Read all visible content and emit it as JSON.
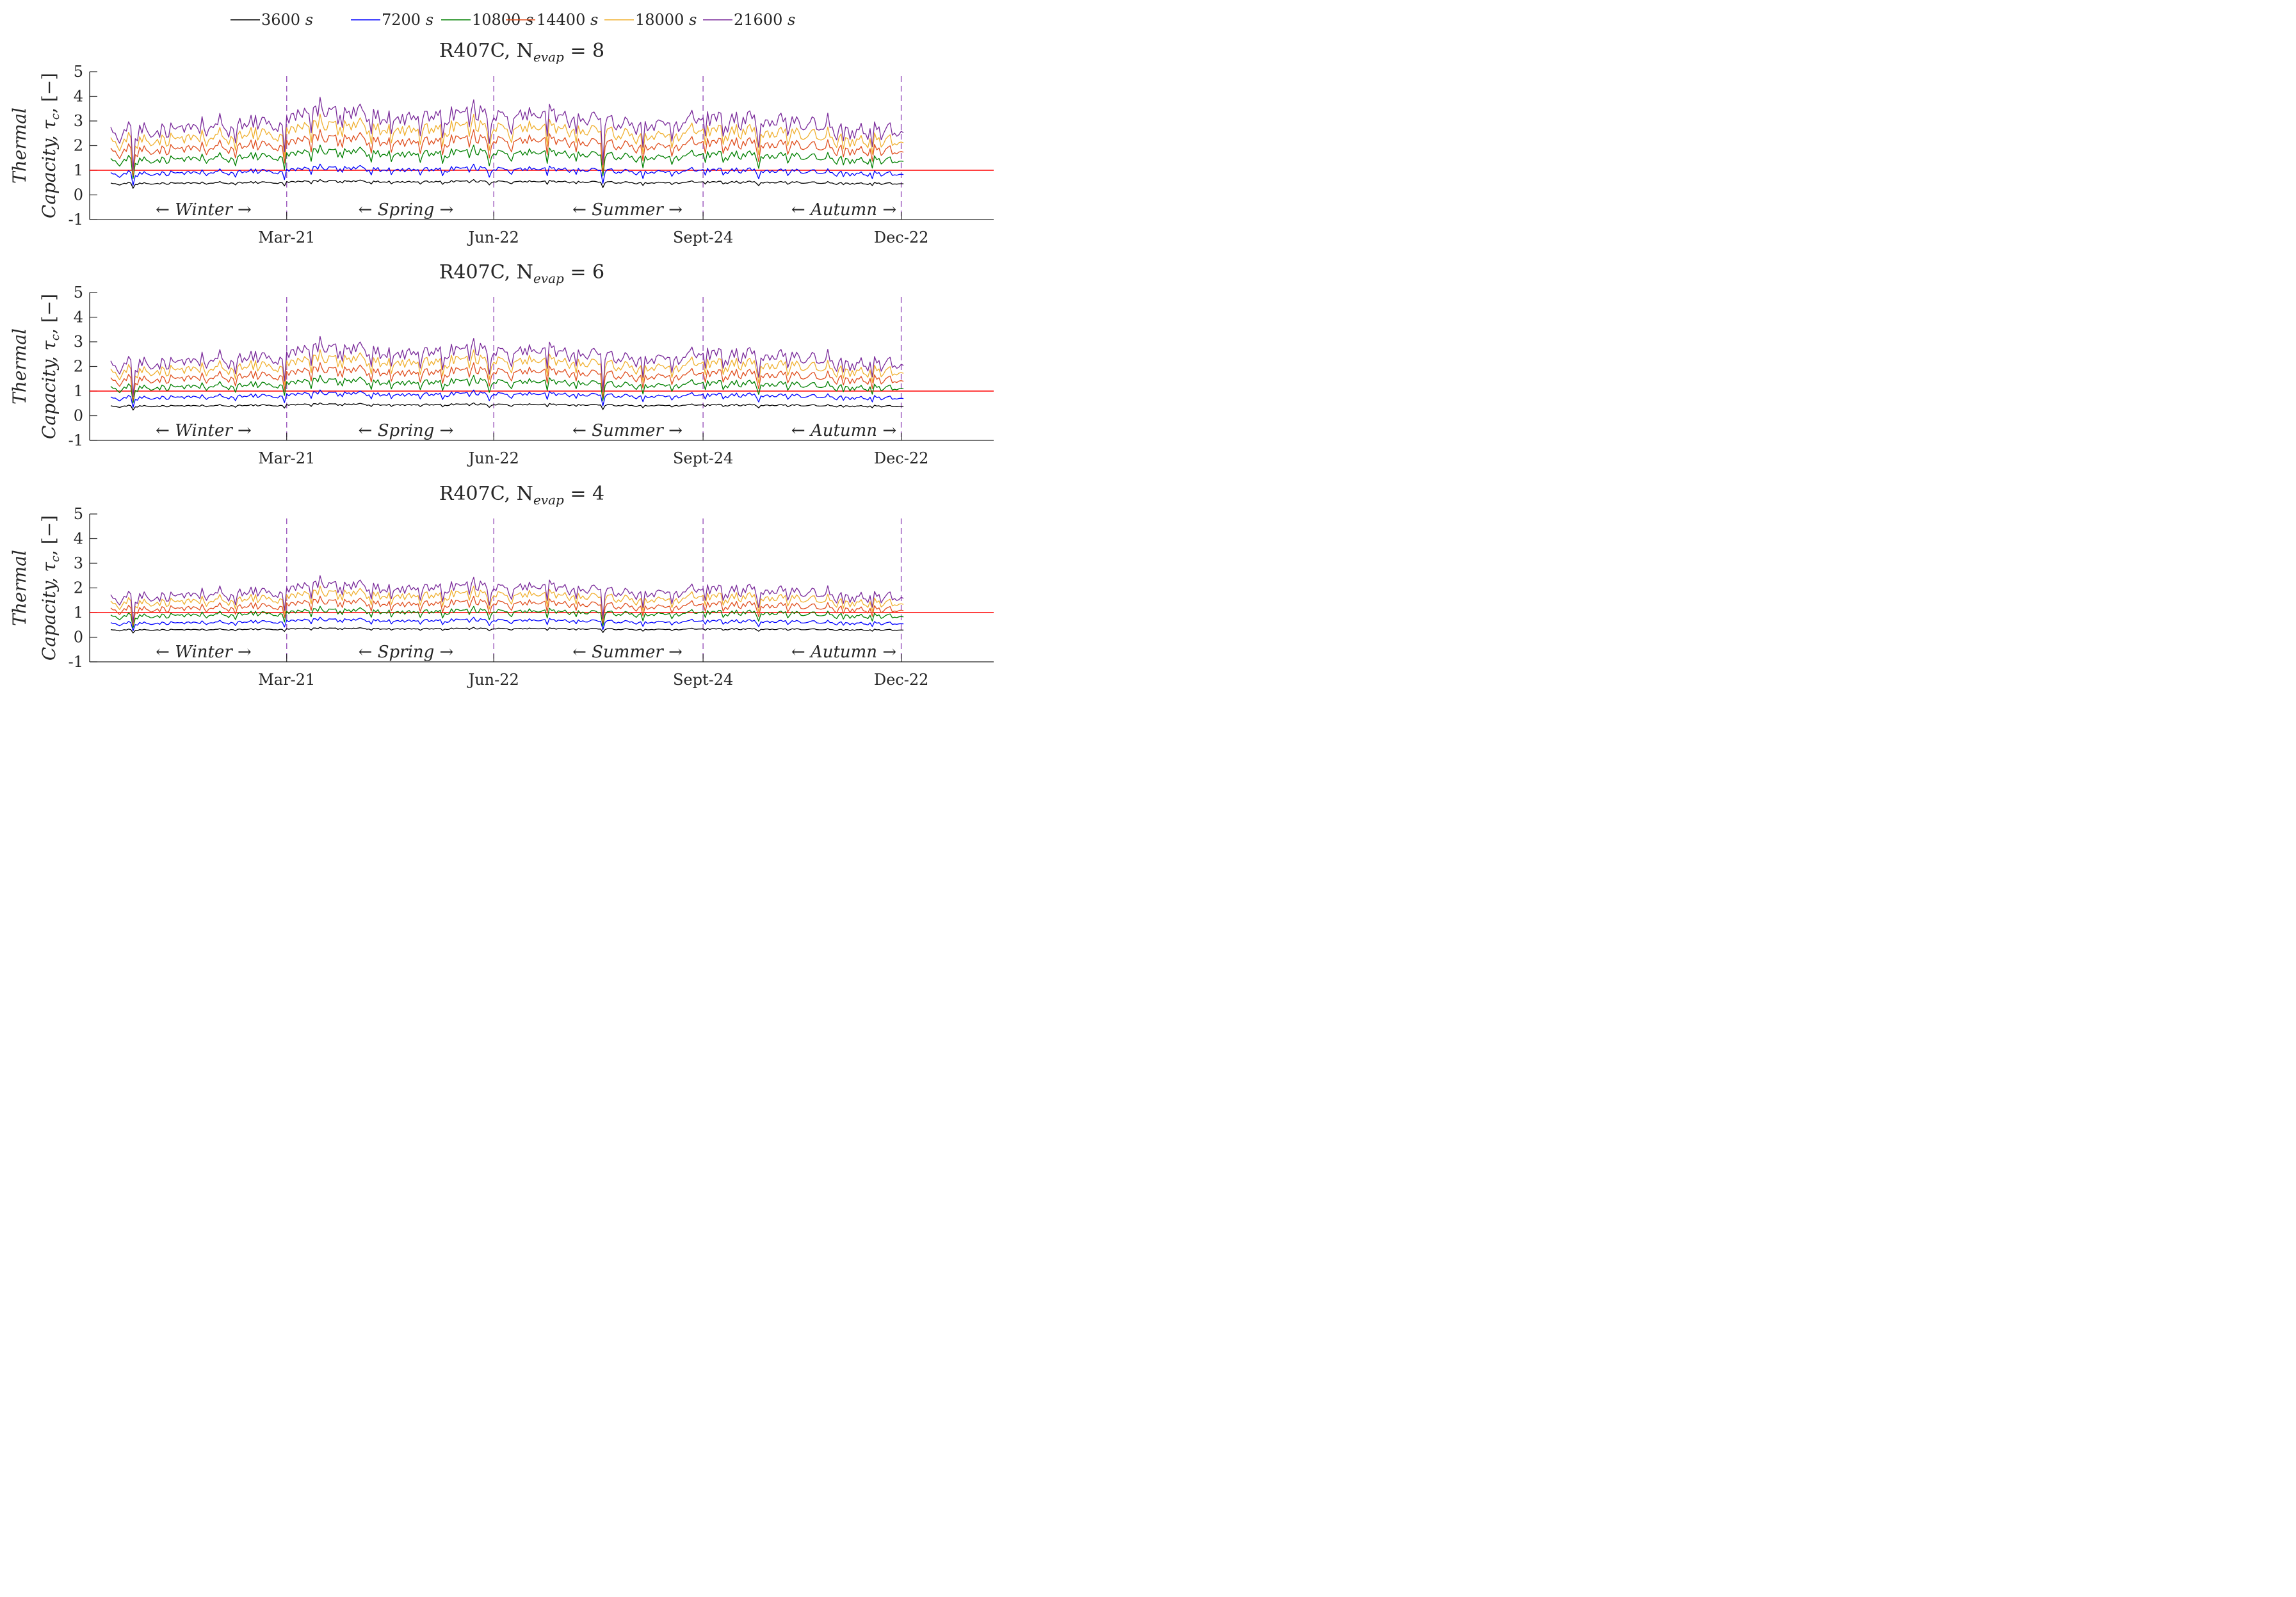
{
  "figure": {
    "legend": [
      {
        "value": "3600",
        "unit": "s",
        "color": "#000000"
      },
      {
        "value": "7200",
        "unit": "s",
        "color": "#0000ff"
      },
      {
        "value": "10800",
        "unit": "s",
        "color": "#008000"
      },
      {
        "value": "14400",
        "unit": "s",
        "color": "#e05020"
      },
      {
        "value": "18000",
        "unit": "s",
        "color": "#f0b030"
      },
      {
        "value": "21600",
        "unit": "s",
        "color": "#7a2a9a"
      }
    ],
    "ylabel_line1": "Thermal",
    "ylabel_line2": "Capacity, τ",
    "ylabel_sub": "c",
    "ylabel_tail": ", [−]",
    "reference_line": {
      "value": 1,
      "color": "#ff0000"
    },
    "season_divider_color": "#a060c0",
    "season_labels": [
      "← Winter →",
      "← Spring →",
      "← Summer →",
      "← Autumn →"
    ]
  },
  "chart_data": [
    {
      "type": "line",
      "title": "R407C, N",
      "title_sub": "evap",
      "title_tail": " = 8",
      "peak_scale": 1.0,
      "ylim": [
        -1,
        5
      ],
      "yticks": [
        "-1",
        "0",
        "1",
        "2",
        "3",
        "4",
        "5"
      ],
      "xticks": [
        "Mar-21",
        "Jun-22",
        "Sept-24",
        "Dec-22"
      ],
      "day_range": [
        1,
        357
      ],
      "season_boundaries": [
        80,
        173,
        267,
        356
      ],
      "series": [
        {
          "name": "3600 s",
          "base": 0.5
        },
        {
          "name": "7200 s",
          "base": 0.95
        },
        {
          "name": "10800 s",
          "base": 1.55
        },
        {
          "name": "14400 s",
          "base": 2.0
        },
        {
          "name": "18000 s",
          "base": 2.45
        },
        {
          "name": "21600 s",
          "base": 2.9
        }
      ]
    },
    {
      "type": "line",
      "title": "R407C, N",
      "title_sub": "evap",
      "title_tail": " = 6",
      "peak_scale": 0.82,
      "ylim": [
        -1,
        5
      ],
      "yticks": [
        "-1",
        "0",
        "1",
        "2",
        "3",
        "4",
        "5"
      ],
      "xticks": [
        "Mar-21",
        "Jun-22",
        "Sept-24",
        "Dec-22"
      ],
      "day_range": [
        1,
        357
      ],
      "season_boundaries": [
        80,
        173,
        267,
        356
      ],
      "series": [
        {
          "name": "3600 s",
          "base": 0.42
        },
        {
          "name": "7200 s",
          "base": 0.8
        },
        {
          "name": "10800 s",
          "base": 1.25
        },
        {
          "name": "14400 s",
          "base": 1.62
        },
        {
          "name": "18000 s",
          "base": 2.0
        },
        {
          "name": "21600 s",
          "base": 2.35
        }
      ]
    },
    {
      "type": "line",
      "title": "R407C, N",
      "title_sub": "evap",
      "title_tail": " = 4",
      "peak_scale": 0.64,
      "ylim": [
        -1,
        5
      ],
      "yticks": [
        "-1",
        "0",
        "1",
        "2",
        "3",
        "4",
        "5"
      ],
      "xticks": [
        "Mar-21",
        "Jun-22",
        "Sept-24",
        "Dec-22"
      ],
      "day_range": [
        1,
        357
      ],
      "season_boundaries": [
        80,
        173,
        267,
        356
      ],
      "series": [
        {
          "name": "3600 s",
          "base": 0.32
        },
        {
          "name": "7200 s",
          "base": 0.62
        },
        {
          "name": "10800 s",
          "base": 0.95
        },
        {
          "name": "14400 s",
          "base": 1.25
        },
        {
          "name": "18000 s",
          "base": 1.55
        },
        {
          "name": "21600 s",
          "base": 1.82
        }
      ]
    }
  ]
}
